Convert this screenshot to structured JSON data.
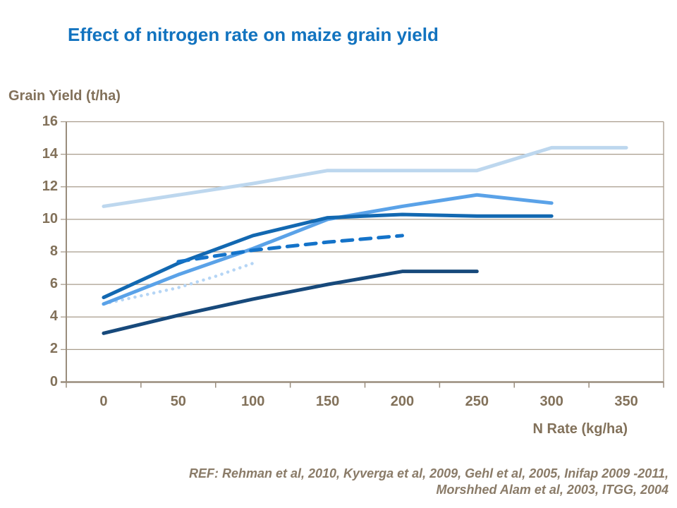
{
  "title": "Effect of nitrogen rate on maize grain yield",
  "footer": {
    "ref_line1": "REF: Rehman et al, 2010, Kyverga et al, 2009, Gehl et al, 2005, Inifap 2009 -2011,",
    "ref_line2": "Morshhed Alam et al, 2003, ITGG, 2004"
  },
  "colors": {
    "title_text": "#1273BF",
    "axis_text": "#82715A",
    "ref_text": "#8A7B68",
    "grid_line": "#A89C8C",
    "axis_line": "#9A8D7D"
  },
  "chart_data": {
    "type": "line",
    "title": "Effect of nitrogen rate on maize grain yield",
    "xlabel": "N Rate (kg/ha)",
    "ylabel": "Grain Yield (t/ha)",
    "x_ticks": [
      0,
      50,
      100,
      150,
      200,
      250,
      300,
      350
    ],
    "y_ticks": [
      0,
      2,
      4,
      6,
      8,
      10,
      12,
      14,
      16
    ],
    "xlim": [
      0,
      350
    ],
    "ylim": [
      0,
      16
    ],
    "grid": "horizontal",
    "legend": "none",
    "series": [
      {
        "name": "pale-blue-solid",
        "style": "solid",
        "color": "#BDD7EE",
        "width": 5,
        "x": [
          0,
          50,
          100,
          125,
          150,
          200,
          250,
          300,
          350
        ],
        "y": [
          10.8,
          11.5,
          12.2,
          12.6,
          13.0,
          13.0,
          13.0,
          14.4,
          14.4
        ]
      },
      {
        "name": "pale-blue-dotted",
        "style": "dotted",
        "color": "#B5D5F5",
        "width": 4.5,
        "x": [
          0,
          25,
          50,
          75,
          100
        ],
        "y": [
          4.8,
          5.3,
          5.8,
          6.5,
          7.3
        ]
      },
      {
        "name": "light-blue-solid",
        "style": "solid",
        "color": "#5AA2E8",
        "width": 5,
        "x": [
          0,
          50,
          100,
          150,
          200,
          250,
          300
        ],
        "y": [
          4.8,
          6.6,
          8.2,
          10.0,
          10.8,
          11.5,
          11.0
        ]
      },
      {
        "name": "medium-blue-solid",
        "style": "solid",
        "color": "#1268B1",
        "width": 5,
        "x": [
          0,
          50,
          100,
          150,
          200,
          250,
          300
        ],
        "y": [
          5.2,
          7.3,
          9.0,
          10.1,
          10.3,
          10.2,
          10.2
        ]
      },
      {
        "name": "blue-dashed",
        "style": "dashed",
        "color": "#1473C9",
        "width": 5,
        "x": [
          50,
          100,
          150,
          200
        ],
        "y": [
          7.4,
          8.1,
          8.6,
          9.0
        ]
      },
      {
        "name": "navy-solid",
        "style": "solid",
        "color": "#17497B",
        "width": 5,
        "x": [
          0,
          50,
          100,
          150,
          200,
          250
        ],
        "y": [
          3.0,
          4.1,
          5.1,
          6.0,
          6.8,
          6.8
        ]
      }
    ]
  }
}
